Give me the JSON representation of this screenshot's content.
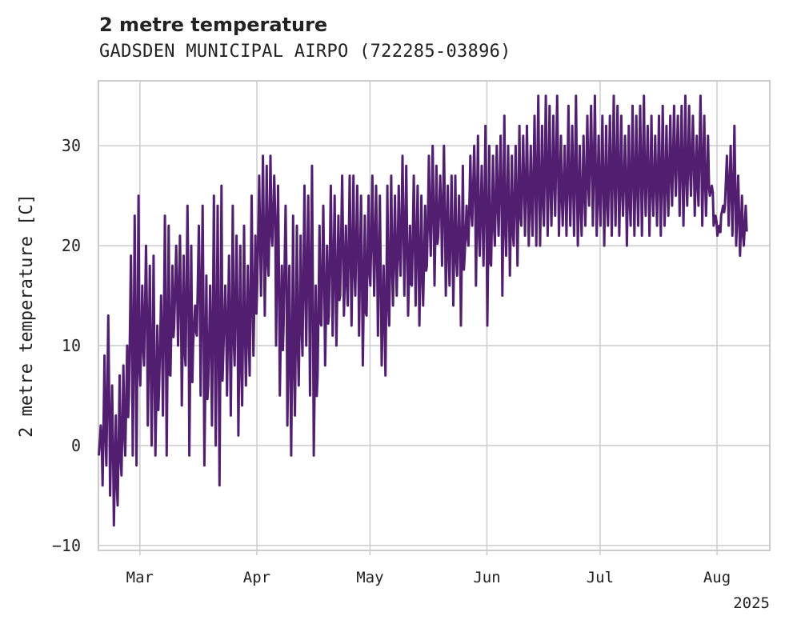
{
  "header": {
    "title": "2 metre temperature",
    "subtitle": "GADSDEN MUNICIPAL AIRPO (722285-03896)"
  },
  "colors": {
    "series": "#521f70",
    "grid": "#cccccc",
    "axis_frame": "#cccccc",
    "text": "#222222"
  },
  "chart_data": {
    "type": "line",
    "title": "2 metre temperature",
    "subtitle": "GADSDEN MUNICIPAL AIRPO (722285-03896)",
    "ylabel": "2 metre temperature [C]",
    "xlabel": "",
    "ylim": [
      -10.5,
      36.5
    ],
    "xlim": [
      "2025-02-18",
      "2025-08-15"
    ],
    "grid": true,
    "legend": "none",
    "x_ticks": [
      {
        "date": "2025-03-01",
        "label": "Mar"
      },
      {
        "date": "2025-04-01",
        "label": "Apr"
      },
      {
        "date": "2025-05-01",
        "label": "May"
      },
      {
        "date": "2025-06-01",
        "label": "Jun"
      },
      {
        "date": "2025-07-01",
        "label": "Jul"
      },
      {
        "date": "2025-08-01",
        "label": "Aug"
      }
    ],
    "x_offset_label": "2025",
    "y_ticks": [
      -10,
      0,
      10,
      20,
      30
    ],
    "series": [
      {
        "x": [
          "2025-02-18",
          "2025-02-19",
          "2025-02-20",
          "2025-02-21",
          "2025-02-22",
          "2025-02-23",
          "2025-02-24",
          "2025-02-25",
          "2025-02-26",
          "2025-02-27",
          "2025-02-28",
          "2025-03-01",
          "2025-03-02",
          "2025-03-03",
          "2025-03-04",
          "2025-03-05",
          "2025-03-06",
          "2025-03-07",
          "2025-03-08",
          "2025-03-09",
          "2025-03-10",
          "2025-03-11",
          "2025-03-12",
          "2025-03-13",
          "2025-03-14",
          "2025-03-15",
          "2025-03-16",
          "2025-03-17",
          "2025-03-18",
          "2025-03-19",
          "2025-03-20",
          "2025-03-21",
          "2025-03-22",
          "2025-03-23",
          "2025-03-24",
          "2025-03-25",
          "2025-03-26",
          "2025-03-27",
          "2025-03-28",
          "2025-03-29",
          "2025-03-30",
          "2025-03-31",
          "2025-04-01",
          "2025-04-02",
          "2025-04-03",
          "2025-04-04",
          "2025-04-05",
          "2025-04-06",
          "2025-04-07",
          "2025-04-08",
          "2025-04-09",
          "2025-04-10",
          "2025-04-11",
          "2025-04-12",
          "2025-04-13",
          "2025-04-14",
          "2025-04-15",
          "2025-04-16",
          "2025-04-17",
          "2025-04-18",
          "2025-04-19",
          "2025-04-20",
          "2025-04-21",
          "2025-04-22",
          "2025-04-23",
          "2025-04-24",
          "2025-04-25",
          "2025-04-26",
          "2025-04-27",
          "2025-04-28",
          "2025-04-29",
          "2025-04-30",
          "2025-05-01",
          "2025-05-02",
          "2025-05-03",
          "2025-05-04",
          "2025-05-05",
          "2025-05-06",
          "2025-05-07",
          "2025-05-08",
          "2025-05-09",
          "2025-05-10",
          "2025-05-11",
          "2025-05-12",
          "2025-05-13",
          "2025-05-14",
          "2025-05-15",
          "2025-05-16",
          "2025-05-17",
          "2025-05-18",
          "2025-05-19",
          "2025-05-20",
          "2025-05-21",
          "2025-05-22",
          "2025-05-23",
          "2025-05-24",
          "2025-05-25",
          "2025-05-26",
          "2025-05-27",
          "2025-05-28",
          "2025-05-29",
          "2025-05-30",
          "2025-05-31",
          "2025-06-01",
          "2025-06-02",
          "2025-06-03",
          "2025-06-04",
          "2025-06-05",
          "2025-06-06",
          "2025-06-07",
          "2025-06-08",
          "2025-06-09",
          "2025-06-10",
          "2025-06-11",
          "2025-06-12",
          "2025-06-13",
          "2025-06-14",
          "2025-06-15",
          "2025-06-16",
          "2025-06-17",
          "2025-06-18",
          "2025-06-19",
          "2025-06-20",
          "2025-06-21",
          "2025-06-22",
          "2025-06-23",
          "2025-06-24",
          "2025-06-25",
          "2025-06-26",
          "2025-06-27",
          "2025-06-28",
          "2025-06-29",
          "2025-06-30",
          "2025-07-01",
          "2025-07-02",
          "2025-07-03",
          "2025-07-04",
          "2025-07-05",
          "2025-07-06",
          "2025-07-07",
          "2025-07-08",
          "2025-07-09",
          "2025-07-10",
          "2025-07-11",
          "2025-07-12",
          "2025-07-13",
          "2025-07-14",
          "2025-07-15",
          "2025-07-16",
          "2025-07-17",
          "2025-07-18",
          "2025-07-19",
          "2025-07-20",
          "2025-07-21",
          "2025-07-22",
          "2025-07-23",
          "2025-07-24",
          "2025-07-25",
          "2025-07-26",
          "2025-07-27",
          "2025-07-28",
          "2025-07-29",
          "2025-07-30",
          "2025-07-31",
          "2025-08-01",
          "2025-08-02",
          "2025-08-03",
          "2025-08-04",
          "2025-08-05",
          "2025-08-06",
          "2025-08-07",
          "2025-08-08",
          "2025-08-09",
          "2025-08-10",
          "2025-08-11",
          "2025-08-12",
          "2025-08-13",
          "2025-08-14",
          "2025-08-15"
        ],
        "min": [
          -1,
          -4,
          -2,
          -5,
          -8,
          -6,
          -3,
          -1,
          5,
          -1,
          -2,
          6,
          8,
          2,
          0,
          -1,
          6,
          3,
          -1,
          7,
          12,
          10,
          4,
          8,
          -1,
          10,
          11,
          5,
          -2,
          6,
          2,
          0,
          -4,
          9,
          5,
          3,
          8,
          1,
          4,
          6,
          7,
          9,
          16,
          15,
          13,
          17,
          20,
          10,
          5,
          12,
          2,
          -1,
          3,
          6,
          9,
          10,
          5,
          -1,
          7,
          12,
          8,
          13,
          11,
          10,
          15,
          13,
          14,
          12,
          15,
          11,
          8,
          13,
          16,
          15,
          11,
          8,
          7,
          12,
          14,
          15,
          17,
          15,
          13,
          16,
          14,
          12,
          14,
          18,
          19,
          16,
          21,
          18,
          15,
          16,
          14,
          17,
          12,
          19,
          20,
          22,
          16,
          19,
          18,
          12,
          18,
          20,
          21,
          15,
          19,
          17,
          20,
          18,
          22,
          21,
          20,
          21,
          20,
          20,
          22,
          21,
          22,
          23,
          21,
          22,
          21,
          22,
          21,
          20,
          21,
          22,
          24,
          22,
          21,
          22,
          20,
          22,
          21,
          22,
          21,
          23,
          20,
          22,
          21,
          22,
          21,
          23,
          21,
          23,
          22,
          21,
          22,
          23,
          24,
          25,
          23,
          22,
          24,
          25,
          23,
          24,
          22,
          23,
          25,
          22,
          21,
          23,
          24,
          22,
          21,
          20,
          19,
          20,
          21,
          23,
          21,
          23,
          24,
          22,
          21,
          20
        ],
        "max": [
          2,
          9,
          13,
          6,
          3,
          7,
          8,
          10,
          19,
          23,
          25,
          16,
          20,
          18,
          19,
          12,
          15,
          23,
          22,
          18,
          20,
          21,
          19,
          24,
          20,
          14,
          22,
          24,
          17,
          16,
          25,
          24,
          26,
          16,
          19,
          24,
          21,
          20,
          22,
          18,
          25,
          21,
          27,
          29,
          28,
          29,
          27,
          26,
          18,
          24,
          18,
          23,
          22,
          21,
          26,
          25,
          28,
          16,
          22,
          24,
          20,
          26,
          25,
          23,
          27,
          22,
          27,
          27,
          26,
          25,
          23,
          25,
          27,
          26,
          25,
          18,
          26,
          27,
          25,
          26,
          29,
          28,
          22,
          27,
          26,
          25,
          24,
          29,
          30,
          28,
          27,
          30,
          26,
          27,
          27,
          25,
          28,
          24,
          29,
          30,
          31,
          28,
          32,
          30,
          29,
          30,
          31,
          33,
          30,
          29,
          30,
          32,
          31,
          32,
          30,
          33,
          35,
          32,
          35,
          34,
          33,
          35,
          31,
          30,
          34,
          32,
          35,
          30,
          31,
          33,
          34,
          35,
          31,
          33,
          32,
          33,
          35,
          34,
          33,
          31,
          32,
          34,
          33,
          34,
          35,
          32,
          33,
          31,
          33,
          34,
          32,
          33,
          34,
          33,
          34,
          35,
          34,
          33,
          31,
          35,
          33,
          31,
          26,
          23,
          22,
          24,
          29,
          30,
          32,
          27,
          25,
          24,
          24,
          23
        ]
      }
    ]
  }
}
